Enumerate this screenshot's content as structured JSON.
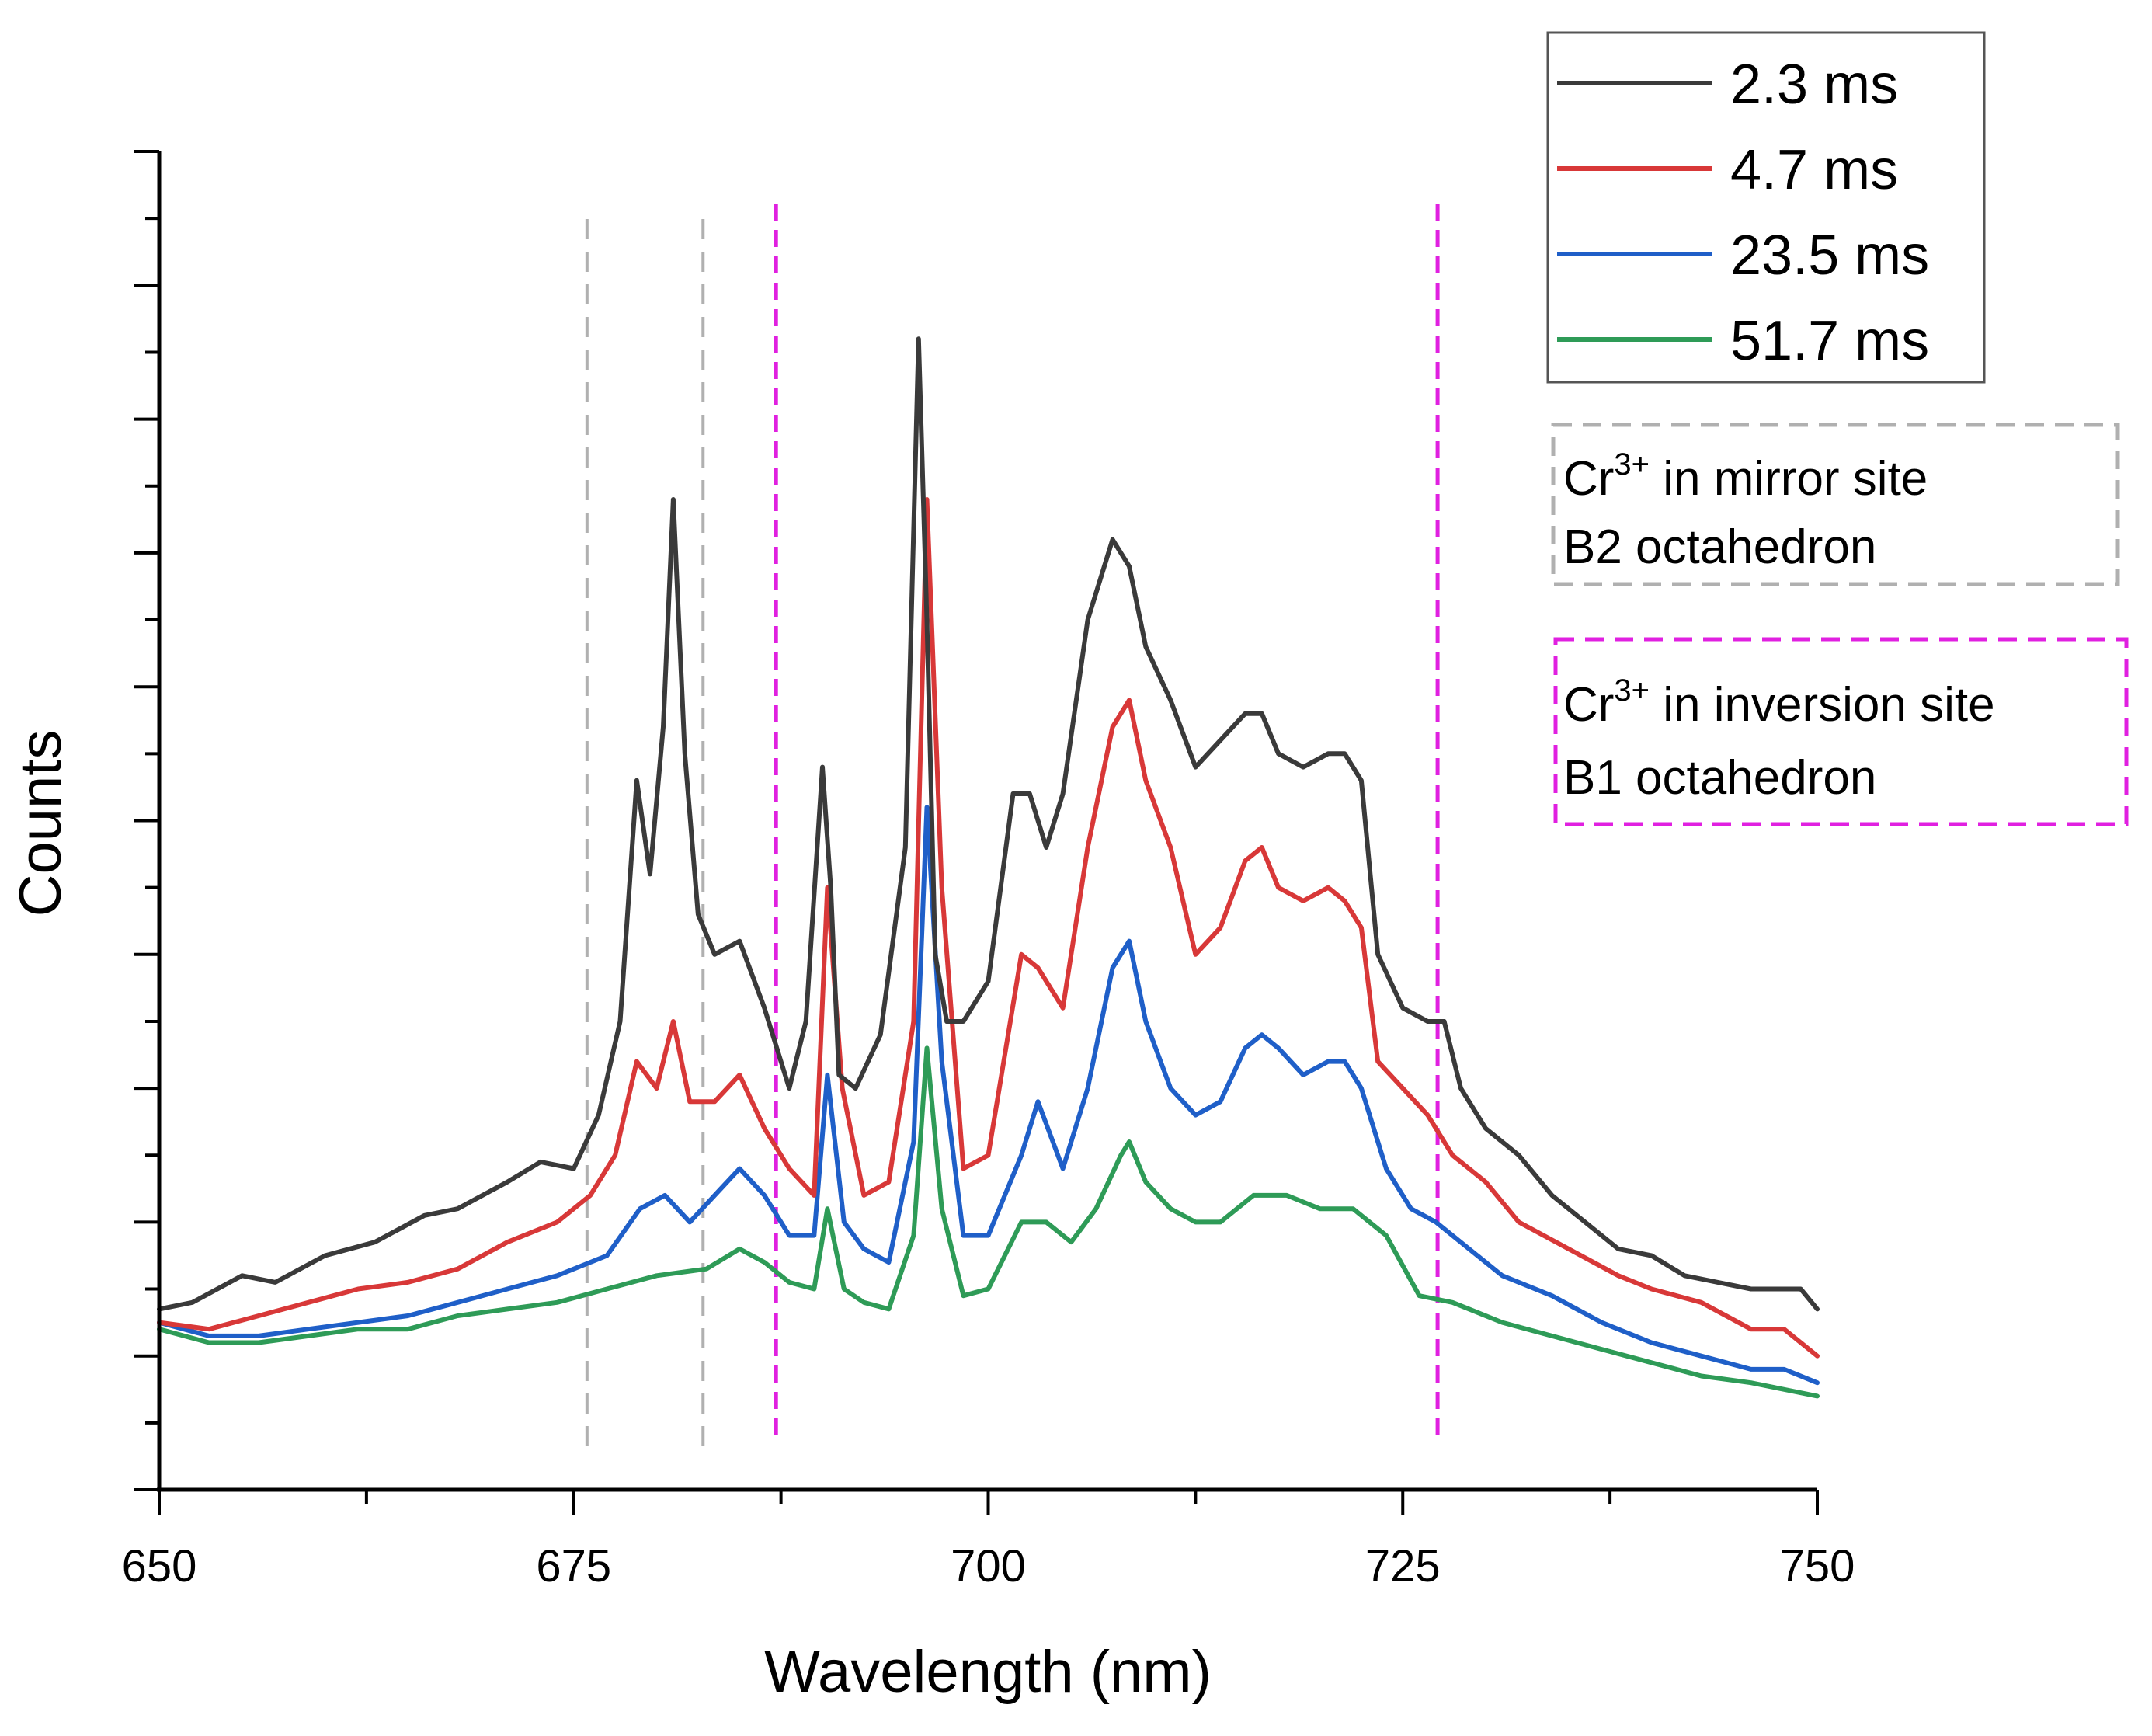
{
  "chart_data": {
    "type": "line",
    "xlabel": "Wavelength (nm)",
    "ylabel": "Counts",
    "xlim": [
      650,
      750
    ],
    "ylim": [
      -1,
      9
    ],
    "xticks": [
      "650",
      "675",
      "700",
      "725",
      "750"
    ],
    "series_order": [
      "2.3 ms",
      "4.7 ms",
      "23.5 ms",
      "51.7 ms"
    ],
    "series": [
      {
        "name": "2.3 ms",
        "color": "#3a3a3a",
        "x": [
          650,
          652,
          655,
          657,
          660,
          663,
          666,
          668,
          671,
          673,
          675,
          676.5,
          677.8,
          678.8,
          679.6,
          680.4,
          681,
          681.7,
          682.5,
          683.5,
          685,
          686.5,
          688,
          689,
          690,
          690.5,
          691,
          692,
          693.5,
          695,
          695.8,
          696.3,
          696.8,
          697.5,
          698.5,
          700,
          701.5,
          702.5,
          703.5,
          704.5,
          706,
          707.5,
          708.5,
          709.5,
          711,
          712.5,
          714,
          715.5,
          716.5,
          717.5,
          719,
          720.5,
          721.5,
          722.5,
          723.5,
          725,
          726.5,
          727.5,
          728.5,
          730,
          732,
          734,
          736,
          738,
          740,
          742,
          744,
          746,
          748,
          749,
          750
        ],
        "values": [
          0.35,
          0.4,
          0.6,
          0.55,
          0.75,
          0.85,
          1.05,
          1.1,
          1.3,
          1.45,
          1.4,
          1.8,
          2.5,
          4.3,
          3.6,
          4.7,
          6.4,
          4.5,
          3.3,
          3.0,
          3.1,
          2.6,
          2.0,
          2.5,
          4.4,
          3.5,
          2.1,
          2.0,
          2.4,
          3.8,
          7.6,
          5.5,
          3.0,
          2.5,
          2.5,
          2.8,
          4.2,
          4.2,
          3.8,
          4.2,
          5.5,
          6.1,
          5.9,
          5.3,
          4.9,
          4.4,
          4.6,
          4.8,
          4.8,
          4.5,
          4.4,
          4.5,
          4.5,
          4.3,
          3.0,
          2.6,
          2.5,
          2.5,
          2.0,
          1.7,
          1.5,
          1.2,
          1.0,
          0.8,
          0.75,
          0.6,
          0.55,
          0.5,
          0.5,
          0.5,
          0.35
        ]
      },
      {
        "name": "4.7 ms",
        "color": "#d83838",
        "x": [
          650,
          653,
          656,
          659,
          662,
          665,
          668,
          671,
          674,
          676,
          677.5,
          678.8,
          680,
          681,
          682,
          683.5,
          685,
          686.5,
          688,
          689.5,
          690.3,
          691.2,
          692.5,
          694,
          695.5,
          696.3,
          697.2,
          698.5,
          700,
          702,
          703,
          704.5,
          706,
          707.5,
          708.5,
          709.5,
          711,
          712.5,
          714,
          715.5,
          716.5,
          717.5,
          719,
          720.5,
          721.5,
          722.5,
          723.5,
          725,
          726.5,
          728,
          730,
          732,
          735,
          738,
          740,
          743,
          746,
          748,
          750
        ],
        "values": [
          0.25,
          0.2,
          0.3,
          0.4,
          0.5,
          0.55,
          0.65,
          0.85,
          1.0,
          1.2,
          1.5,
          2.2,
          2.0,
          2.5,
          1.9,
          1.9,
          2.1,
          1.7,
          1.4,
          1.2,
          3.5,
          2.0,
          1.2,
          1.3,
          2.5,
          6.4,
          3.5,
          1.4,
          1.5,
          3.0,
          2.9,
          2.6,
          3.8,
          4.7,
          4.9,
          4.3,
          3.8,
          3.0,
          3.2,
          3.7,
          3.8,
          3.5,
          3.4,
          3.5,
          3.4,
          3.2,
          2.2,
          2.0,
          1.8,
          1.5,
          1.3,
          1.0,
          0.8,
          0.6,
          0.5,
          0.4,
          0.2,
          0.2,
          0.0
        ]
      },
      {
        "name": "23.5 ms",
        "color": "#1f5fc8",
        "x": [
          650,
          653,
          656,
          659,
          662,
          665,
          668,
          671,
          674,
          677,
          679,
          680.5,
          682,
          683.5,
          685,
          686.5,
          688,
          689.5,
          690.3,
          691.3,
          692.5,
          694,
          695.5,
          696.3,
          697.2,
          698.5,
          700,
          702,
          703,
          704.5,
          706,
          707.5,
          708.5,
          709.5,
          711,
          712.5,
          714,
          715.5,
          716.5,
          717.5,
          719,
          720.5,
          721.5,
          722.5,
          724,
          725.5,
          727,
          729,
          731,
          734,
          737,
          740,
          743,
          746,
          748,
          750
        ],
        "values": [
          0.25,
          0.15,
          0.15,
          0.2,
          0.25,
          0.3,
          0.4,
          0.5,
          0.6,
          0.75,
          1.1,
          1.2,
          1.0,
          1.2,
          1.4,
          1.2,
          0.9,
          0.9,
          2.1,
          1.0,
          0.8,
          0.7,
          1.6,
          4.1,
          2.2,
          0.9,
          0.9,
          1.5,
          1.9,
          1.4,
          2.0,
          2.9,
          3.1,
          2.5,
          2.0,
          1.8,
          1.9,
          2.3,
          2.4,
          2.3,
          2.1,
          2.2,
          2.2,
          2.0,
          1.4,
          1.1,
          1.0,
          0.8,
          0.6,
          0.45,
          0.25,
          0.1,
          0.0,
          -0.1,
          -0.1,
          -0.2
        ]
      },
      {
        "name": "51.7 ms",
        "color": "#2e9b57",
        "x": [
          650,
          653,
          656,
          659,
          662,
          665,
          668,
          671,
          674,
          677,
          680,
          683,
          685,
          686.5,
          688,
          689.5,
          690.3,
          691.3,
          692.5,
          694,
          695.5,
          696.3,
          697.2,
          698.5,
          700,
          702,
          703.5,
          705,
          706.5,
          708,
          708.5,
          709.5,
          711,
          712.5,
          714,
          716,
          718,
          720,
          722,
          724,
          726,
          728,
          731,
          734,
          737,
          740,
          743,
          746,
          748,
          750
        ],
        "values": [
          0.2,
          0.1,
          0.1,
          0.15,
          0.2,
          0.2,
          0.3,
          0.35,
          0.4,
          0.5,
          0.6,
          0.65,
          0.8,
          0.7,
          0.55,
          0.5,
          1.1,
          0.5,
          0.4,
          0.35,
          0.9,
          2.3,
          1.1,
          0.45,
          0.5,
          1.0,
          1.0,
          0.85,
          1.1,
          1.5,
          1.6,
          1.3,
          1.1,
          1.0,
          1.0,
          1.2,
          1.2,
          1.1,
          1.1,
          0.9,
          0.45,
          0.4,
          0.25,
          0.15,
          0.05,
          -0.05,
          -0.15,
          -0.2,
          -0.25,
          -0.3
        ]
      }
    ],
    "reference_lines": [
      {
        "x": 675.8,
        "color": "#b0b0b0",
        "group": "mirror"
      },
      {
        "x": 682.8,
        "color": "#b0b0b0",
        "group": "mirror"
      },
      {
        "x": 687.2,
        "color": "#e020e0",
        "group": "inversion"
      },
      {
        "x": 727.1,
        "color": "#e020e0",
        "group": "inversion"
      }
    ],
    "legend": {
      "position": "top-right",
      "entries": [
        "2.3 ms",
        "4.7 ms",
        "23.5 ms",
        "51.7 ms"
      ]
    },
    "annotations": {
      "mirror": {
        "sup": "3+",
        "line1_pre": "Cr",
        "line1_post": " in mirror site",
        "line2": "B2 octahedron",
        "color": "#b0b0b0"
      },
      "inversion": {
        "sup": "3+",
        "line1_pre": "Cr",
        "line1_post": " in inversion site",
        "line2": "B1 octahedron",
        "color": "#e020e0"
      }
    }
  }
}
